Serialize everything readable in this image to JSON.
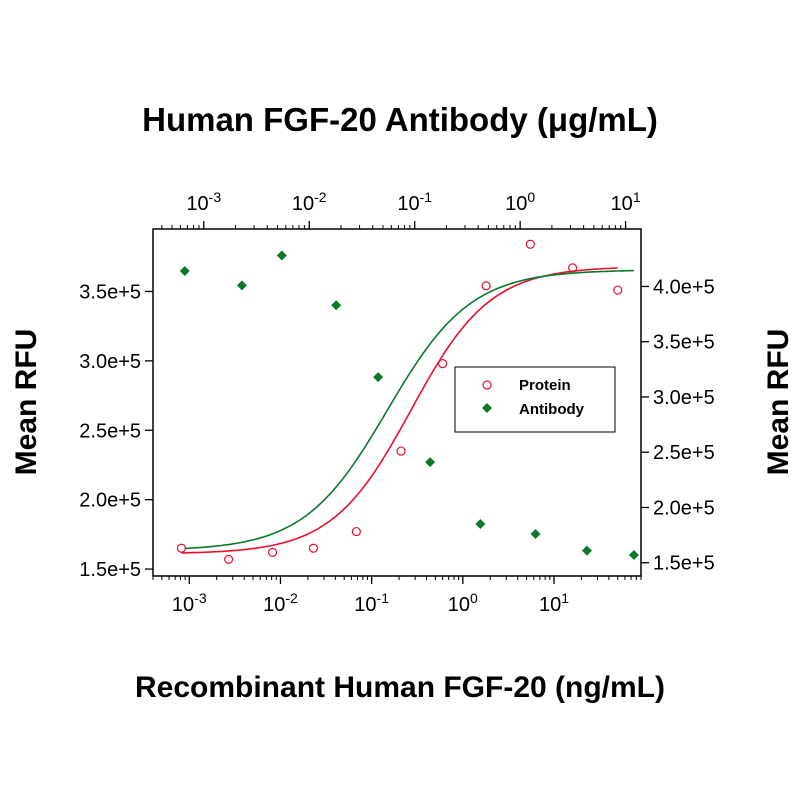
{
  "chart_data": {
    "type": "scatter",
    "top_title": "Human FGF-20 Antibody (μg/mL)",
    "xlabel": "Recombinant Human FGF-20 (ng/mL)",
    "ylabel_left": "Mean RFU",
    "ylabel_right": "Mean RFU",
    "x_bottom": {
      "scale": "log",
      "range": [
        0.0004,
        90
      ],
      "tick_values": [
        0.001,
        0.01,
        0.1,
        1,
        10
      ],
      "tick_labels": [
        {
          "base": "10",
          "exp": "-3"
        },
        {
          "base": "10",
          "exp": "-2"
        },
        {
          "base": "10",
          "exp": "-1"
        },
        {
          "base": "10",
          "exp": "0"
        },
        {
          "base": "10",
          "exp": "1"
        }
      ]
    },
    "x_top": {
      "scale": "log",
      "range": [
        0.00033,
        14
      ],
      "tick_values": [
        0.001,
        0.01,
        0.1,
        1,
        10
      ],
      "tick_labels": [
        {
          "base": "10",
          "exp": "-3"
        },
        {
          "base": "10",
          "exp": "-2"
        },
        {
          "base": "10",
          "exp": "-1"
        },
        {
          "base": "10",
          "exp": "0"
        },
        {
          "base": "10",
          "exp": "1"
        }
      ]
    },
    "y_left": {
      "range": [
        145000,
        395000
      ],
      "tick_values": [
        150000,
        200000,
        250000,
        300000,
        350000
      ],
      "tick_labels": [
        "1.5e+5",
        "2.0e+5",
        "2.5e+5",
        "3.0e+5",
        "3.5e+5"
      ]
    },
    "y_right": {
      "range": [
        138000,
        452000
      ],
      "tick_values": [
        150000,
        200000,
        250000,
        300000,
        350000,
        400000
      ],
      "tick_labels": [
        "1.5e+5",
        "2.0e+5",
        "2.5e+5",
        "3.0e+5",
        "3.5e+5",
        "4.0e+5"
      ]
    },
    "legend_position": "center-right",
    "series": [
      {
        "name": "Protein",
        "color": "#e8102c",
        "marker": "open-circle",
        "x_axis": "bottom",
        "y_axis": "left",
        "x": [
          0.00082,
          0.0027,
          0.0082,
          0.023,
          0.068,
          0.21,
          0.6,
          1.8,
          5.5,
          16,
          50
        ],
        "y": [
          165000,
          157000,
          162000,
          165000,
          177000,
          235000,
          298000,
          354000,
          384000,
          367000,
          351000
        ],
        "fit": {
          "bottom": 161000,
          "top": 368000,
          "ec50": 0.27,
          "hill": 1.0
        }
      },
      {
        "name": "Antibody",
        "color": "#0a7a2a",
        "marker": "filled-diamond",
        "x_axis": "top",
        "y_axis": "right",
        "x": [
          0.00066,
          0.0023,
          0.0055,
          0.018,
          0.045,
          0.14,
          0.42,
          1.4,
          4.3,
          12
        ],
        "y": [
          414000,
          401000,
          428000,
          383000,
          318000,
          241000,
          185000,
          176000,
          161000,
          157000
        ],
        "fit": {
          "bottom": 161000,
          "top": 415000,
          "ec50": 0.055,
          "hill": 1.1
        }
      }
    ]
  }
}
